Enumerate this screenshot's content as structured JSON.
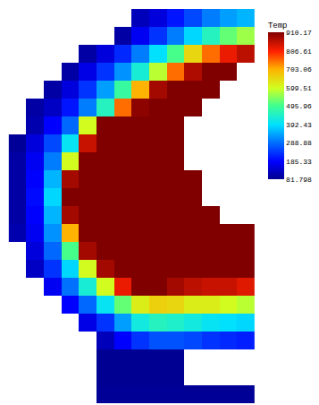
{
  "chart_data": {
    "type": "heatmap",
    "tick_labels": false,
    "colorbar": {
      "title": "Temp",
      "range": [
        81.798,
        910.17
      ],
      "ticks": [
        910.17,
        806.61,
        703.06,
        599.51,
        495.96,
        392.43,
        288.88,
        185.33,
        81.798
      ]
    },
    "cells": [
      [
        null,
        null,
        null,
        null,
        null,
        null,
        null,
        120,
        150,
        200,
        250,
        300,
        330,
        350
      ],
      [
        null,
        null,
        null,
        null,
        null,
        null,
        100,
        170,
        230,
        300,
        380,
        450,
        520,
        560
      ],
      [
        null,
        null,
        null,
        null,
        100,
        150,
        220,
        300,
        390,
        500,
        650,
        750,
        820,
        860
      ],
      [
        null,
        null,
        null,
        100,
        160,
        230,
        320,
        430,
        580,
        750,
        870,
        910,
        910,
        null
      ],
      [
        null,
        null,
        100,
        150,
        230,
        330,
        480,
        700,
        880,
        910,
        910,
        910,
        null,
        null
      ],
      [
        null,
        100,
        130,
        200,
        300,
        450,
        750,
        900,
        910,
        910,
        910,
        null,
        null,
        null
      ],
      [
        null,
        110,
        180,
        280,
        600,
        910,
        910,
        910,
        910,
        910,
        null,
        null,
        null,
        null
      ],
      [
        90,
        150,
        250,
        400,
        850,
        910,
        910,
        910,
        910,
        910,
        null,
        null,
        null,
        null
      ],
      [
        100,
        170,
        300,
        600,
        910,
        910,
        910,
        910,
        910,
        910,
        null,
        null,
        null,
        null
      ],
      [
        100,
        180,
        350,
        880,
        910,
        910,
        910,
        910,
        910,
        910,
        910,
        null,
        null,
        null
      ],
      [
        100,
        190,
        380,
        910,
        910,
        910,
        910,
        910,
        910,
        910,
        910,
        null,
        null,
        null
      ],
      [
        100,
        180,
        350,
        880,
        910,
        910,
        910,
        910,
        910,
        910,
        910,
        910,
        null,
        null
      ],
      [
        110,
        170,
        320,
        700,
        910,
        910,
        910,
        910,
        910,
        910,
        910,
        910,
        910,
        910
      ],
      [
        null,
        150,
        280,
        500,
        880,
        910,
        910,
        910,
        910,
        910,
        910,
        910,
        910,
        910
      ],
      [
        null,
        130,
        230,
        380,
        600,
        880,
        910,
        910,
        910,
        910,
        910,
        910,
        910,
        910
      ],
      [
        null,
        null,
        170,
        290,
        430,
        600,
        820,
        910,
        910,
        880,
        860,
        850,
        850,
        830
      ],
      [
        null,
        null,
        null,
        180,
        280,
        400,
        520,
        620,
        660,
        650,
        620,
        620,
        600,
        580
      ],
      [
        null,
        null,
        null,
        null,
        160,
        230,
        330,
        420,
        450,
        440,
        420,
        400,
        390,
        380
      ],
      [
        null,
        null,
        null,
        null,
        null,
        120,
        180,
        230,
        260,
        260,
        250,
        230,
        220,
        210
      ],
      [
        null,
        null,
        null,
        null,
        null,
        85,
        85,
        85,
        85,
        85,
        null,
        null,
        null,
        null
      ],
      [
        null,
        null,
        null,
        null,
        null,
        85,
        85,
        85,
        85,
        85,
        null,
        null,
        null,
        null
      ],
      [
        null,
        null,
        null,
        null,
        null,
        88,
        88,
        88,
        88,
        88,
        88,
        88,
        88,
        88
      ]
    ]
  }
}
